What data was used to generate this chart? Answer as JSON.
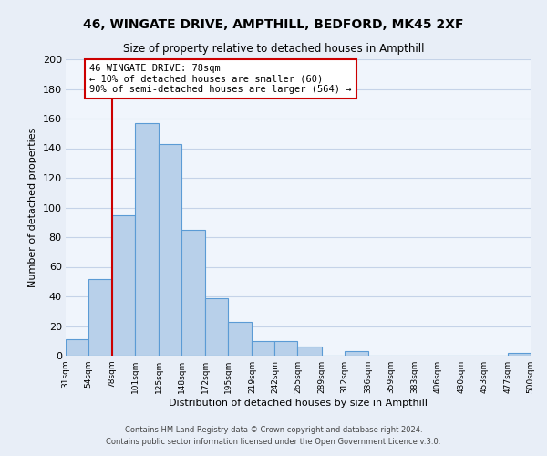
{
  "title": "46, WINGATE DRIVE, AMPTHILL, BEDFORD, MK45 2XF",
  "subtitle": "Size of property relative to detached houses in Ampthill",
  "xlabel": "Distribution of detached houses by size in Ampthill",
  "ylabel": "Number of detached properties",
  "bar_edges": [
    31,
    54,
    78,
    101,
    125,
    148,
    172,
    195,
    219,
    242,
    265,
    289,
    312,
    336,
    359,
    383,
    406,
    430,
    453,
    477,
    500
  ],
  "bar_heights": [
    11,
    52,
    95,
    157,
    143,
    85,
    39,
    23,
    10,
    10,
    6,
    0,
    3,
    0,
    0,
    0,
    0,
    0,
    0,
    2
  ],
  "bar_color": "#b8d0ea",
  "bar_edge_color": "#5b9bd5",
  "vline_x": 78,
  "vline_color": "#cc0000",
  "vline_label": "46 WINGATE DRIVE: 78sqm",
  "annotation_line1": "← 10% of detached houses are smaller (60)",
  "annotation_line2": "90% of semi-detached houses are larger (564) →",
  "annotation_box_color": "#cc0000",
  "ylim": [
    0,
    200
  ],
  "yticks": [
    0,
    20,
    40,
    60,
    80,
    100,
    120,
    140,
    160,
    180,
    200
  ],
  "tick_labels": [
    "31sqm",
    "54sqm",
    "78sqm",
    "101sqm",
    "125sqm",
    "148sqm",
    "172sqm",
    "195sqm",
    "219sqm",
    "242sqm",
    "265sqm",
    "289sqm",
    "312sqm",
    "336sqm",
    "359sqm",
    "383sqm",
    "406sqm",
    "430sqm",
    "453sqm",
    "477sqm",
    "500sqm"
  ],
  "footer1": "Contains HM Land Registry data © Crown copyright and database right 2024.",
  "footer2": "Contains public sector information licensed under the Open Government Licence v.3.0.",
  "bg_color": "#e8eef7",
  "plot_bg_color": "#f0f5fc",
  "grid_color": "#c5d3e8"
}
